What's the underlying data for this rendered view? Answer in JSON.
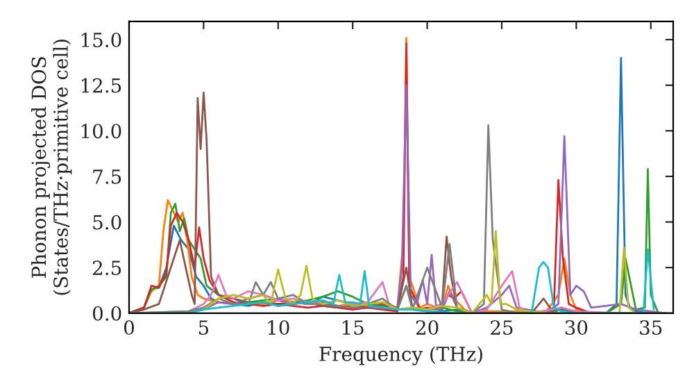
{
  "chart_data": {
    "type": "line",
    "xlabel": "Frequency (THz)",
    "ylabel": "Phonon projected DOS\n(States/THz·primitive cell)",
    "xlim": [
      0,
      36.5
    ],
    "ylim": [
      0,
      16
    ],
    "xticks": [
      0,
      5,
      10,
      15,
      20,
      25,
      30,
      35
    ],
    "yticks": [
      {
        "value": 0,
        "label": "0.0"
      },
      {
        "value": 2.5,
        "label": "2.5"
      },
      {
        "value": 5,
        "label": "5.0"
      },
      {
        "value": 7.5,
        "label": "7.5"
      },
      {
        "value": 10,
        "label": "10.0"
      },
      {
        "value": 12.5,
        "label": "12.5"
      },
      {
        "value": 15,
        "label": "15.0"
      }
    ],
    "grid": false,
    "legend": false,
    "series": [
      {
        "color": "#1f77b4",
        "x": [
          0,
          1,
          1.5,
          2,
          2.5,
          3,
          3.5,
          4,
          4.5,
          5,
          5.5,
          6,
          7,
          8,
          9,
          10,
          11,
          12,
          13,
          14,
          15,
          16,
          17,
          18,
          19,
          20,
          21,
          22,
          23,
          24,
          25,
          26,
          27,
          28,
          29,
          30,
          31,
          32,
          32.7,
          33.0,
          33.3,
          33.6,
          34,
          35,
          36
        ],
        "values": [
          0,
          0.3,
          1.3,
          1.4,
          2.5,
          4.8,
          4.0,
          3.5,
          2.0,
          1.5,
          0.8,
          0.6,
          0.5,
          0.4,
          0.6,
          0.5,
          0.6,
          0.5,
          0.9,
          0.7,
          0.5,
          0.5,
          0.3,
          0.2,
          0.2,
          0.1,
          0.1,
          0.2,
          0,
          0.1,
          0,
          0,
          0,
          0.1,
          0.2,
          0.1,
          0,
          0,
          0.5,
          14.0,
          1.0,
          0.3,
          0.1,
          0,
          0
        ]
      },
      {
        "color": "#ff7f0e",
        "x": [
          0,
          1,
          1.5,
          2,
          2.3,
          2.6,
          3,
          3.3,
          3.6,
          3.9,
          4.2,
          4.6,
          5,
          6,
          7,
          8,
          9,
          10,
          11,
          12,
          13,
          14,
          15,
          16,
          17,
          18,
          18.4,
          18.6,
          18.8,
          19.5,
          20,
          21,
          21.4,
          21.8,
          22.5,
          23,
          24,
          25,
          26,
          27,
          28,
          28.8,
          29.2,
          29.6,
          30,
          31
        ],
        "values": [
          0,
          0.3,
          1.2,
          1.5,
          4.5,
          6.2,
          5.5,
          5.0,
          5.5,
          4.0,
          2.0,
          1.0,
          0.8,
          0.6,
          0.5,
          0.6,
          0.5,
          0.7,
          0.5,
          0.6,
          0.5,
          0.4,
          0.5,
          0.4,
          0.6,
          0.3,
          4.0,
          15.1,
          2.0,
          0.3,
          0.5,
          0.2,
          1.5,
          0.8,
          0.2,
          0,
          0.1,
          0.1,
          0.1,
          0,
          0.1,
          1.0,
          3.0,
          1.0,
          0.2,
          0
        ]
      },
      {
        "color": "#2ca02c",
        "x": [
          0,
          1,
          1.5,
          2,
          2.5,
          2.8,
          3.1,
          3.4,
          3.7,
          4.0,
          4.4,
          4.8,
          5.2,
          6,
          7,
          8,
          9,
          10,
          11,
          12,
          13,
          14,
          15,
          16,
          17,
          18,
          18.6,
          19,
          20,
          21,
          22,
          24,
          26,
          28,
          29,
          30,
          32,
          33,
          33.3,
          34,
          34.6,
          34.8,
          35.0,
          35.5,
          36
        ],
        "values": [
          0,
          0.3,
          1.3,
          1.5,
          2.0,
          5.5,
          6.0,
          4.5,
          5.2,
          4.0,
          3.5,
          3.0,
          1.5,
          1.0,
          0.8,
          0.6,
          0.7,
          0.8,
          0.6,
          0.7,
          0.9,
          1.2,
          0.9,
          0.5,
          0.4,
          0.2,
          1.5,
          0.3,
          0.2,
          0.3,
          0.1,
          0,
          0,
          0,
          0.3,
          0,
          0,
          0.5,
          3.0,
          0.2,
          0.3,
          7.9,
          1.0,
          0,
          0
        ]
      },
      {
        "color": "#d62728",
        "x": [
          0,
          1,
          1.5,
          2,
          2.5,
          2.8,
          3.2,
          3.6,
          4.0,
          4.4,
          4.7,
          5.0,
          5.4,
          6,
          7,
          8,
          9,
          10,
          11,
          12,
          13,
          14,
          15,
          16,
          17,
          18,
          18.4,
          18.6,
          18.8,
          19.5,
          20,
          21,
          21.4,
          21.8,
          22.3,
          23,
          24,
          26,
          28,
          28.5,
          28.8,
          29.1,
          29.5,
          30,
          31
        ],
        "values": [
          0,
          0.3,
          1.5,
          1.4,
          2.2,
          4.8,
          5.5,
          5.0,
          4.0,
          2.5,
          4.7,
          3.0,
          1.8,
          1.0,
          0.6,
          0.5,
          0.4,
          0.5,
          0.4,
          0.3,
          0.4,
          0.3,
          0.2,
          0.3,
          0.2,
          0.1,
          2.0,
          14.8,
          1.5,
          0.2,
          0.3,
          0.2,
          1.0,
          0.8,
          1.2,
          0,
          0,
          0,
          0,
          0.3,
          7.3,
          3.0,
          0.5,
          0.3,
          0
        ]
      },
      {
        "color": "#9467bd",
        "x": [
          0,
          2,
          4,
          5,
          6,
          7,
          8,
          9,
          10,
          11,
          12,
          13,
          14,
          15,
          16,
          17,
          18,
          18.3,
          18.6,
          18.9,
          19.3,
          19.7,
          20.0,
          20.3,
          20.6,
          21,
          21.5,
          22,
          23,
          24,
          25,
          25.5,
          26,
          28,
          28.8,
          29.2,
          29.6,
          30,
          30.5,
          31,
          33,
          34,
          36
        ],
        "values": [
          0,
          0,
          0.1,
          0.2,
          0.6,
          0.5,
          0.8,
          1.0,
          0.7,
          0.6,
          0.5,
          0.6,
          0.4,
          0.3,
          0.3,
          0.3,
          0.3,
          2.5,
          12.5,
          1.0,
          0.5,
          1.8,
          0.5,
          3.2,
          0.3,
          0.2,
          1.2,
          0.3,
          0,
          0.3,
          1.0,
          1.5,
          0.3,
          0,
          0.5,
          9.7,
          1.0,
          1.5,
          1.2,
          0.3,
          0.5,
          0.2,
          0
        ]
      },
      {
        "color": "#8c564b",
        "x": [
          0,
          1,
          2,
          3,
          3.4,
          3.8,
          4.2,
          4.4,
          4.6,
          4.8,
          5.0,
          5.2,
          5.5,
          6,
          7,
          8,
          9,
          10,
          11,
          12,
          13,
          14,
          15,
          16,
          17,
          18,
          18.6,
          19,
          20,
          21,
          21.3,
          21.6,
          22,
          23,
          24,
          25,
          26,
          27,
          27.8,
          28.5,
          29,
          30,
          31,
          33,
          35,
          36
        ],
        "values": [
          0,
          0.2,
          0.5,
          3.0,
          4.0,
          2.5,
          1.0,
          0.5,
          11.8,
          9.0,
          12.1,
          9.5,
          2.0,
          1.0,
          0.8,
          0.5,
          0.6,
          0.4,
          0.5,
          0.6,
          0.4,
          0.3,
          0.4,
          0.3,
          0.5,
          0.2,
          2.5,
          0.3,
          0.2,
          0.5,
          4.2,
          2.0,
          0.3,
          0,
          0,
          0,
          0,
          0,
          0.8,
          0,
          0.3,
          0,
          0,
          0,
          0,
          0
        ]
      },
      {
        "color": "#e377c2",
        "x": [
          0,
          4,
          5,
          5.5,
          6,
          6.5,
          7,
          8,
          9,
          10,
          11,
          12,
          13,
          14,
          15,
          16,
          17,
          17.5,
          18,
          19,
          20,
          21,
          22,
          23,
          24,
          25,
          25.7,
          26.2,
          27,
          29,
          30,
          33,
          36
        ],
        "values": [
          0,
          0.1,
          0.5,
          1.0,
          2.1,
          1.0,
          0.8,
          1.2,
          1.0,
          0.7,
          0.8,
          0.6,
          0.5,
          0.7,
          0.5,
          0.6,
          1.7,
          0.3,
          0.2,
          0.3,
          0.2,
          0.5,
          1.7,
          0,
          0.2,
          1.5,
          2.3,
          0.3,
          0,
          0.3,
          0.1,
          0,
          0
        ]
      },
      {
        "color": "#7f7f7f",
        "x": [
          0,
          4,
          5,
          6,
          7,
          8,
          8.5,
          9,
          9.5,
          10,
          11,
          12,
          13,
          14,
          15,
          16,
          17,
          18,
          18.6,
          19,
          20,
          21,
          21.5,
          22,
          23,
          23.8,
          24.1,
          24.4,
          25,
          26,
          28,
          30,
          33,
          36
        ],
        "values": [
          0,
          0.1,
          0.3,
          0.8,
          0.5,
          0.5,
          1.7,
          1.0,
          1.7,
          0.8,
          1.0,
          0.5,
          0.5,
          0.4,
          0.3,
          0.5,
          0.8,
          0.2,
          1.5,
          0.2,
          2.5,
          0.3,
          3.8,
          0.3,
          0,
          0.5,
          10.3,
          4.0,
          0.2,
          0,
          0,
          0,
          0,
          0
        ]
      },
      {
        "color": "#bcbd22",
        "x": [
          0,
          4,
          5,
          6,
          7,
          8,
          9,
          9.5,
          10,
          10.5,
          11,
          11.5,
          11.9,
          12.3,
          13,
          14,
          15,
          16,
          17,
          18,
          19,
          20,
          21,
          22,
          23,
          24,
          24.3,
          24.6,
          24.9,
          25.3,
          26,
          28,
          30,
          32,
          32.9,
          33.2,
          33.5,
          34
        ],
        "values": [
          0,
          0,
          0.2,
          0.8,
          1.0,
          0.8,
          1.0,
          0.5,
          2.4,
          0.8,
          0.5,
          1.0,
          2.6,
          0.8,
          0.5,
          0.7,
          0.4,
          0.5,
          0.6,
          0.2,
          0.3,
          0.2,
          0.4,
          0.3,
          0,
          1.0,
          0.5,
          4.5,
          0.5,
          0.5,
          0.2,
          0,
          0,
          0,
          0,
          3.6,
          0.3,
          0
        ]
      },
      {
        "color": "#17becf",
        "x": [
          0,
          4,
          5,
          6,
          7,
          8,
          9,
          10,
          11,
          12,
          13,
          13.7,
          14.1,
          14.5,
          15,
          15.5,
          15.8,
          16.1,
          17,
          18,
          19,
          20,
          22,
          24,
          26,
          27,
          27.5,
          27.8,
          28.1,
          28.5,
          29,
          30,
          34.5,
          34.8,
          35.2
        ],
        "values": [
          0,
          0,
          0.2,
          0.3,
          0.4,
          0.5,
          0.6,
          0.4,
          0.5,
          0.6,
          0.7,
          0.5,
          2.1,
          0.6,
          0.6,
          0.5,
          2.3,
          0.4,
          0.3,
          0.2,
          0.2,
          0.1,
          0,
          0,
          0,
          0,
          2.5,
          2.8,
          2.5,
          0.3,
          0.1,
          0,
          0,
          3.5,
          0.2
        ]
      }
    ]
  }
}
